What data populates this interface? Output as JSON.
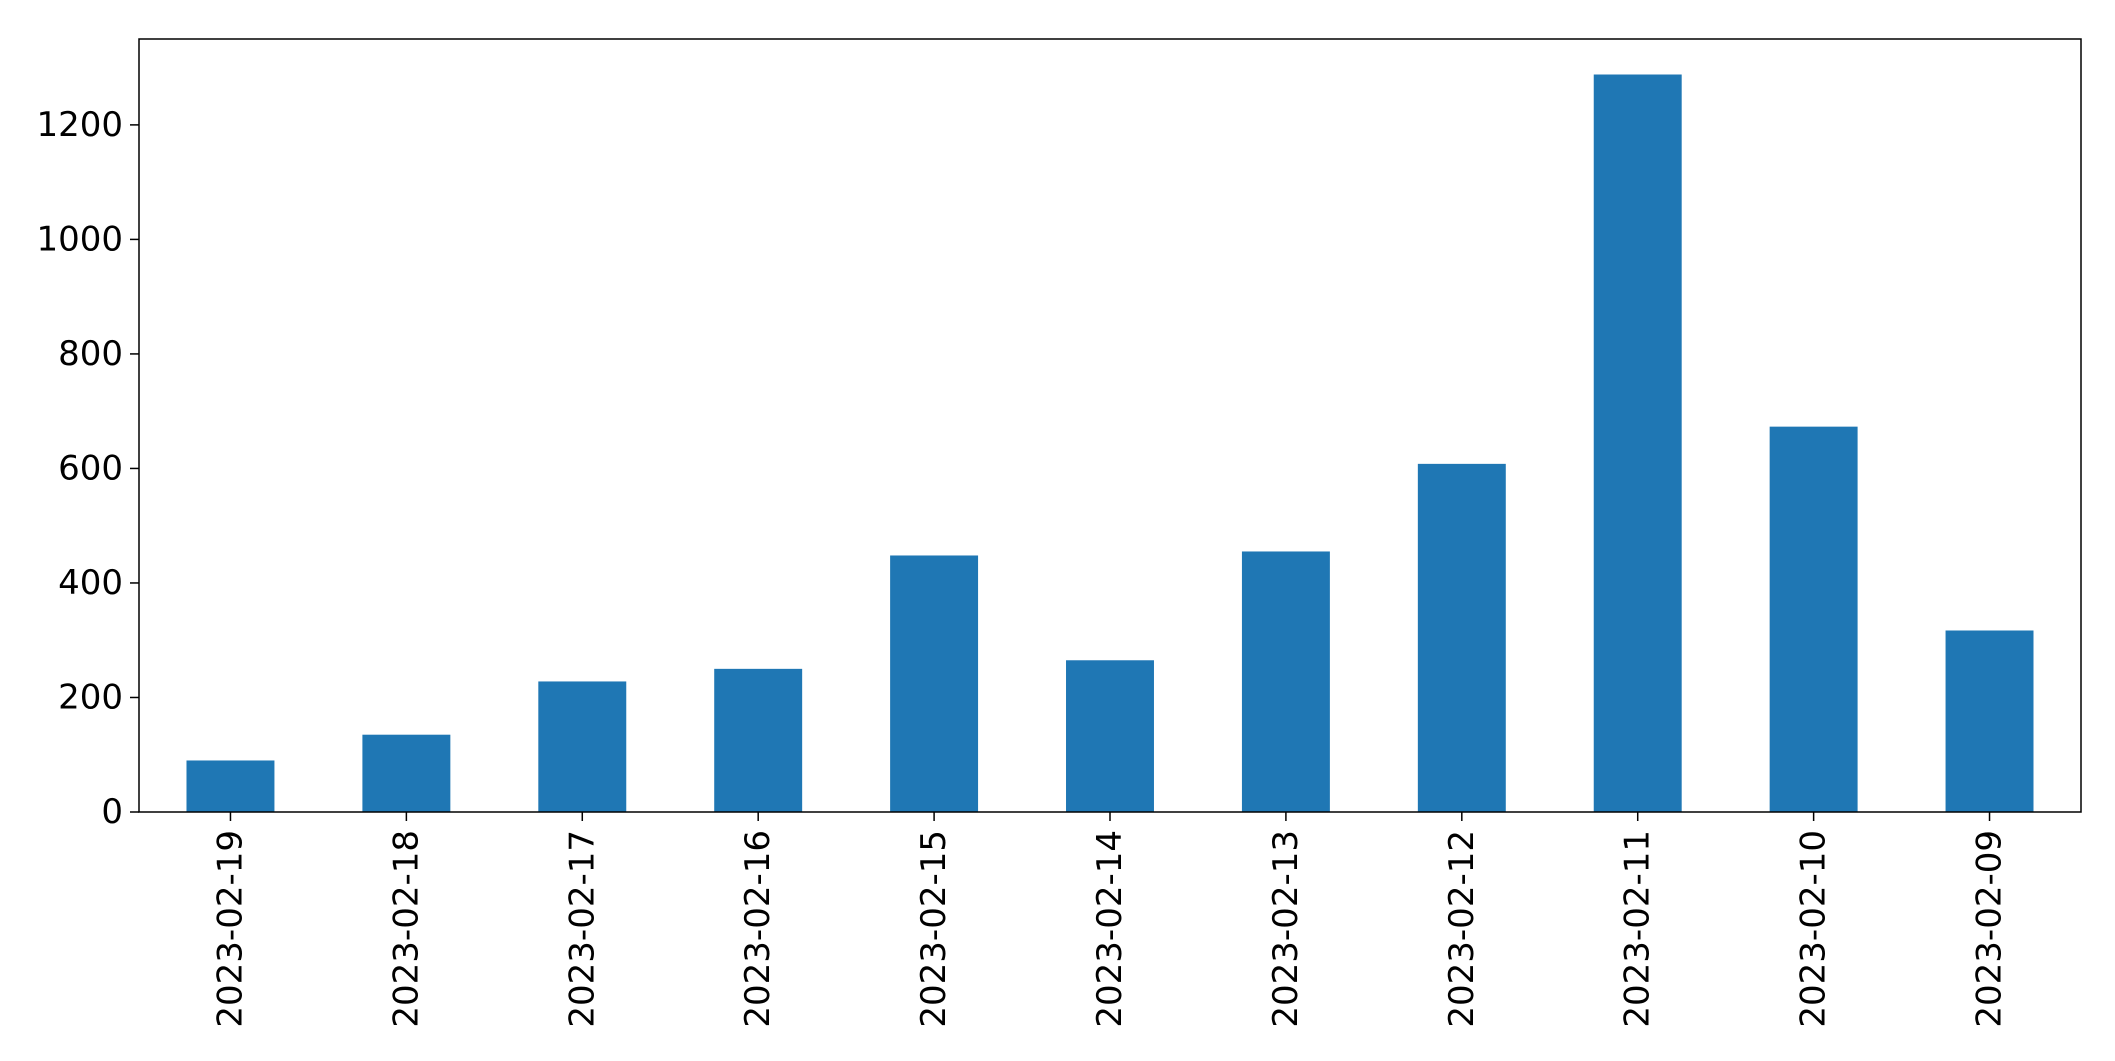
{
  "chart_data": {
    "type": "bar",
    "title": "",
    "xlabel": "",
    "ylabel": "",
    "categories": [
      "2023-02-19",
      "2023-02-18",
      "2023-02-17",
      "2023-02-16",
      "2023-02-15",
      "2023-02-14",
      "2023-02-13",
      "2023-02-12",
      "2023-02-11",
      "2023-02-10",
      "2023-02-09"
    ],
    "values": [
      90,
      135,
      228,
      250,
      448,
      265,
      455,
      608,
      1288,
      673,
      317
    ],
    "ylim": [
      0,
      1350
    ],
    "yticks": [
      0,
      200,
      400,
      600,
      800,
      1000,
      1200
    ],
    "grid": false,
    "legend": "none",
    "bar_color": "#1f77b4",
    "axis_color": "#000000"
  }
}
